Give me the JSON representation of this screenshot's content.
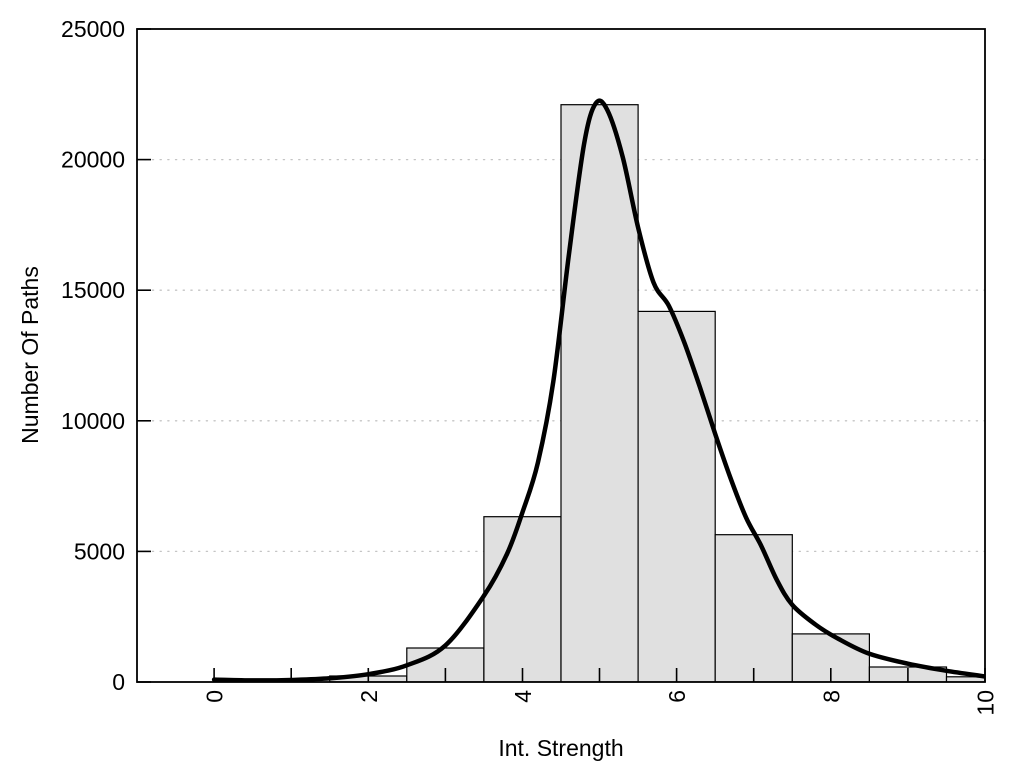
{
  "figure": {
    "background": "#ffffff"
  },
  "chart_data": {
    "type": "bar",
    "subtype": "histogram-with-density-curve",
    "title": "",
    "xlabel": "Int. Strength",
    "ylabel": "Number Of Paths",
    "xlim": [
      -1,
      10
    ],
    "ylim": [
      0,
      25000
    ],
    "x_major_ticks": [
      0,
      2,
      4,
      6,
      8,
      10
    ],
    "x_major_tick_labels": [
      "0",
      "2",
      "4",
      "6",
      "8",
      "10"
    ],
    "x_minor_ticks": [
      1,
      3,
      5,
      7,
      9
    ],
    "x_tick_label_rotation_deg": -90,
    "y_ticks": [
      0,
      5000,
      10000,
      15000,
      20000,
      25000
    ],
    "y_tick_labels": [
      "0",
      "5000",
      "10000",
      "15000",
      "20000",
      "25000"
    ],
    "grid": {
      "y_values": [
        5000,
        10000,
        15000,
        20000
      ],
      "style": "dotted"
    },
    "legend": "none",
    "bars": {
      "bin_width": 1,
      "bin_centers": [
        2,
        3,
        4,
        5,
        6,
        7,
        8,
        9,
        10
      ],
      "values": [
        230,
        1300,
        6330,
        22100,
        14190,
        5640,
        1840,
        575,
        200
      ]
    },
    "series": [
      {
        "name": "density-curve",
        "type": "line",
        "points": [
          [
            0,
            90
          ],
          [
            0.5,
            60
          ],
          [
            1,
            75
          ],
          [
            1.5,
            140
          ],
          [
            2,
            300
          ],
          [
            2.5,
            640
          ],
          [
            3,
            1400
          ],
          [
            3.5,
            3300
          ],
          [
            3.8,
            4900
          ],
          [
            4,
            6500
          ],
          [
            4.2,
            8400
          ],
          [
            4.4,
            11500
          ],
          [
            4.6,
            16300
          ],
          [
            4.8,
            20600
          ],
          [
            4.95,
            22150
          ],
          [
            5.1,
            21900
          ],
          [
            5.3,
            20100
          ],
          [
            5.5,
            17400
          ],
          [
            5.7,
            15300
          ],
          [
            5.9,
            14400
          ],
          [
            6.1,
            13000
          ],
          [
            6.3,
            11300
          ],
          [
            6.5,
            9500
          ],
          [
            6.7,
            7800
          ],
          [
            6.9,
            6300
          ],
          [
            7.1,
            5200
          ],
          [
            7.3,
            3900
          ],
          [
            7.5,
            2950
          ],
          [
            7.8,
            2200
          ],
          [
            8.1,
            1650
          ],
          [
            8.5,
            1080
          ],
          [
            9,
            700
          ],
          [
            9.5,
            430
          ],
          [
            10,
            210
          ]
        ]
      }
    ],
    "colors": {
      "bar_fill": "#e0e0e0",
      "bar_stroke": "#000000",
      "curve": "#000000",
      "grid": "#c4c4c4",
      "axis": "#000000",
      "text": "#000000",
      "background": "#ffffff"
    }
  }
}
